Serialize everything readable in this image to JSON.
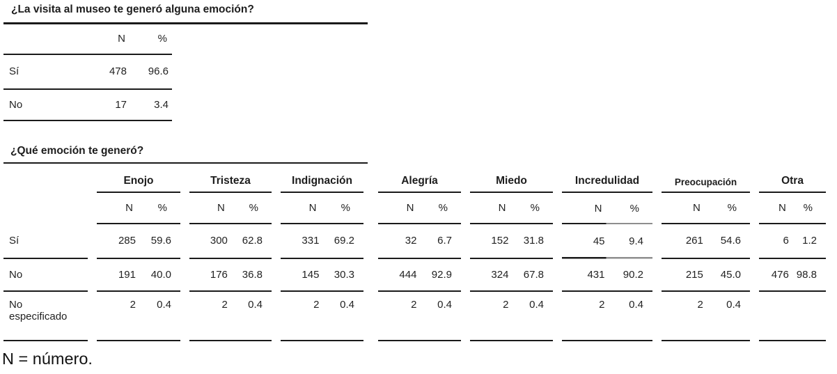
{
  "table1": {
    "title": "¿La visita al museo te generó alguna emoción?",
    "col_headers": [
      "N",
      "%"
    ],
    "rows": [
      {
        "label": "Sí",
        "n": "478",
        "pct": "96.6"
      },
      {
        "label": "No",
        "n": "17",
        "pct": "3.4"
      }
    ]
  },
  "table2": {
    "title": "¿Qué emoción te generó?",
    "subcol_headers": [
      "N",
      "%"
    ],
    "groups": [
      "Enojo",
      "Tristeza",
      "Indignación",
      "Alegría",
      "Miedo",
      "Incredulidad",
      "Preocupación",
      "Otra"
    ],
    "rows": [
      {
        "label": "Sí",
        "cells": [
          [
            "285",
            "59.6"
          ],
          [
            "300",
            "62.8"
          ],
          [
            "331",
            "69.2"
          ],
          [
            "32",
            "6.7"
          ],
          [
            "152",
            "31.8"
          ],
          [
            "45",
            "9.4"
          ],
          [
            "261",
            "54.6"
          ],
          [
            "6",
            "1.2"
          ]
        ]
      },
      {
        "label": "No",
        "cells": [
          [
            "191",
            "40.0"
          ],
          [
            "176",
            "36.8"
          ],
          [
            "145",
            "30.3"
          ],
          [
            "444",
            "92.9"
          ],
          [
            "324",
            "67.8"
          ],
          [
            "431",
            "90.2"
          ],
          [
            "215",
            "45.0"
          ],
          [
            "476",
            "98.8"
          ]
        ]
      },
      {
        "label": "No especificado",
        "cells": [
          [
            "2",
            "0.4"
          ],
          [
            "2",
            "0.4"
          ],
          [
            "2",
            "0.4"
          ],
          [
            "2",
            "0.4"
          ],
          [
            "2",
            "0.4"
          ],
          [
            "2",
            "0.4"
          ],
          [
            "2",
            "0.4"
          ],
          [
            "",
            ""
          ]
        ]
      }
    ]
  },
  "footnote": "N = número."
}
